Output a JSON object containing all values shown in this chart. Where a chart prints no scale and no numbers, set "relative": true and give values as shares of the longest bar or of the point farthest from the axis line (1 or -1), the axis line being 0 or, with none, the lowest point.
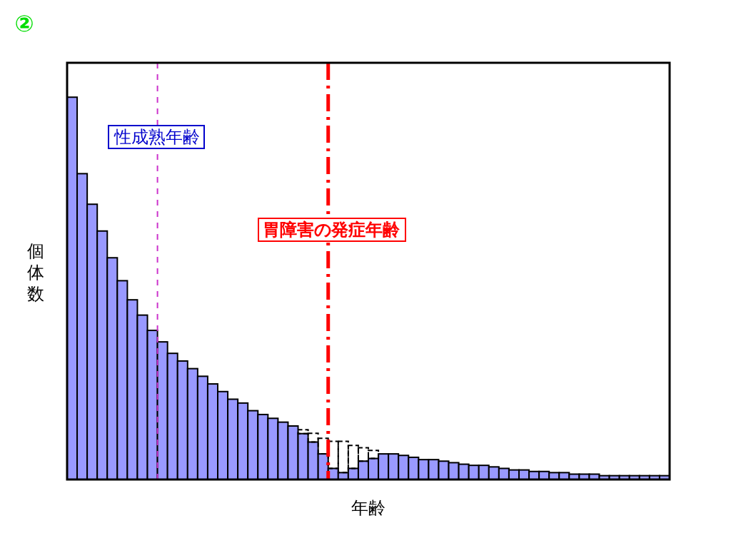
{
  "chart_data": {
    "type": "bar",
    "title": "②",
    "xlabel": "年齢",
    "ylabel": "個体数",
    "relative": true,
    "stacked": true,
    "categories": [
      null,
      null,
      null,
      null,
      null,
      null,
      null,
      null,
      null,
      null,
      null,
      null,
      null,
      null,
      null,
      null,
      null,
      null,
      null,
      null,
      null,
      null,
      null,
      null,
      null,
      null,
      null,
      null,
      null,
      null,
      null,
      null,
      null,
      null,
      null,
      null,
      null,
      null,
      null,
      null,
      null,
      null,
      null,
      null,
      null,
      null,
      null,
      null,
      null,
      null,
      null,
      null,
      null,
      null,
      null,
      null,
      null,
      null,
      null,
      null
    ],
    "series": [
      {
        "color": "#9999ff",
        "values": [
          1,
          0.8,
          0.72,
          0.65,
          0.58,
          0.52,
          0.47,
          0.43,
          0.39,
          0.36,
          0.33,
          0.31,
          0.29,
          0.27,
          0.25,
          0.23,
          0.21,
          0.2,
          0.18,
          0.17,
          0.16,
          0.15,
          0.14,
          0.12,
          0.098,
          0.067,
          0.029,
          0.018,
          0.029,
          0.048,
          0.055,
          0.067,
          0.067,
          0.063,
          0.058,
          0.052,
          0.052,
          0.048,
          0.044,
          0.04,
          0.037,
          0.037,
          0.033,
          0.029,
          0.025,
          0.025,
          0.021,
          0.021,
          0.018,
          0.018,
          0.014,
          0.014,
          0.014,
          0.01,
          0.01,
          0.01,
          0.01,
          0.01,
          0.01,
          0.01
        ]
      },
      {
        "color": "#000000",
        "line_style": "dashed",
        "values": [
          null,
          null,
          null,
          null,
          null,
          null,
          null,
          null,
          null,
          null,
          null,
          null,
          null,
          null,
          null,
          null,
          null,
          null,
          null,
          null,
          null,
          null,
          null,
          0.01,
          0.023,
          0.041,
          0.071,
          0.082,
          0.06,
          0.035,
          0.021,
          null,
          null,
          null,
          null,
          null,
          null,
          null,
          null,
          null,
          null,
          null,
          null,
          null,
          null,
          null,
          null,
          null,
          null,
          null,
          null,
          null,
          null,
          null,
          null,
          null,
          null,
          null,
          null,
          null
        ]
      }
    ],
    "annotations": [
      "性成熟年齢",
      "胃障害の発症年齢"
    ]
  }
}
